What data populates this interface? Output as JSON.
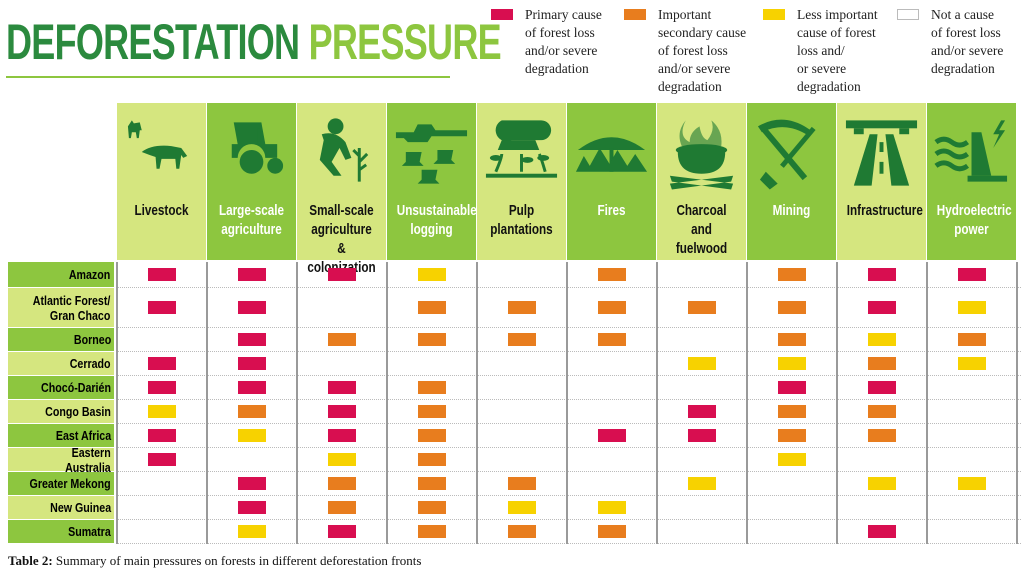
{
  "title": {
    "part1": "DEFORESTATION",
    "part2": "PRESSURE"
  },
  "legend": [
    {
      "code": "P",
      "color": "#d80e50",
      "text": "Primary cause\nof forest loss\nand/or severe\ndegradation"
    },
    {
      "code": "I",
      "color": "#e87d1e",
      "text": "Important\nsecondary cause\nof forest loss\nand/or severe\ndegradation"
    },
    {
      "code": "L",
      "color": "#f7d200",
      "text": "Less important\ncause of forest\nloss and/\nor severe\ndegradation"
    },
    {
      "code": "",
      "color": "#ffffff",
      "text": "Not a cause\nof forest loss\nand/or severe\ndegradation"
    }
  ],
  "colors": {
    "dark_green": "#1f7a33",
    "mid_green": "#8dc63f",
    "light_green": "#d5e67f",
    "primary": "#d80e50",
    "important": "#e87d1e",
    "less": "#f7d200"
  },
  "chart_data": {
    "type": "table",
    "title": "Deforestation Pressure",
    "columns": [
      {
        "label": "Livestock",
        "icon": "livestock-icon"
      },
      {
        "label": "Large-scale\nagriculture",
        "icon": "tractor-icon"
      },
      {
        "label": "Small-scale\nagriculture &\ncolonization",
        "icon": "farmer-icon"
      },
      {
        "label": "Unsustainable\nlogging",
        "icon": "chainsaw-icon"
      },
      {
        "label": "Pulp\nplantations",
        "icon": "pulp-roll-icon"
      },
      {
        "label": "Fires",
        "icon": "fire-icon"
      },
      {
        "label": "Charcoal and\nfuelwood",
        "icon": "charcoal-pot-icon"
      },
      {
        "label": "Mining",
        "icon": "pickaxe-shovel-icon"
      },
      {
        "label": "Infrastructure",
        "icon": "road-icon"
      },
      {
        "label": "Hydroelectric\npower",
        "icon": "dam-icon"
      }
    ],
    "rows": [
      {
        "label": "Amazon",
        "values": [
          "P",
          "P",
          "P",
          "L",
          "",
          "I",
          "",
          "I",
          "P",
          "P"
        ]
      },
      {
        "label": "Atlantic Forest/\nGran Chaco",
        "values": [
          "P",
          "P",
          "",
          "I",
          "I",
          "I",
          "I",
          "I",
          "P",
          "L"
        ]
      },
      {
        "label": "Borneo",
        "values": [
          "",
          "P",
          "I",
          "I",
          "I",
          "I",
          "",
          "I",
          "L",
          "I"
        ]
      },
      {
        "label": "Cerrado",
        "values": [
          "P",
          "P",
          "",
          "",
          "",
          "",
          "L",
          "L",
          "I",
          "L"
        ]
      },
      {
        "label": "Chocó-Darién",
        "values": [
          "P",
          "P",
          "P",
          "I",
          "",
          "",
          "",
          "P",
          "P",
          ""
        ]
      },
      {
        "label": "Congo Basin",
        "values": [
          "L",
          "I",
          "P",
          "I",
          "",
          "",
          "P",
          "I",
          "I",
          ""
        ]
      },
      {
        "label": "East Africa",
        "values": [
          "P",
          "L",
          "P",
          "I",
          "",
          "P",
          "P",
          "I",
          "I",
          ""
        ]
      },
      {
        "label": "Eastern Australia",
        "values": [
          "P",
          "",
          "L",
          "I",
          "",
          "",
          "",
          "L",
          "",
          ""
        ]
      },
      {
        "label": "Greater Mekong",
        "values": [
          "",
          "P",
          "I",
          "I",
          "I",
          "",
          "L",
          "",
          "L",
          "L"
        ]
      },
      {
        "label": "New Guinea",
        "values": [
          "",
          "P",
          "I",
          "I",
          "L",
          "L",
          "",
          "",
          "",
          ""
        ]
      },
      {
        "label": "Sumatra",
        "values": [
          "",
          "L",
          "P",
          "I",
          "I",
          "I",
          "",
          "",
          "P",
          ""
        ]
      }
    ]
  },
  "caption": {
    "label": "Table 2:",
    "text": " Summary of main pressures on forests in different deforestation fronts"
  }
}
